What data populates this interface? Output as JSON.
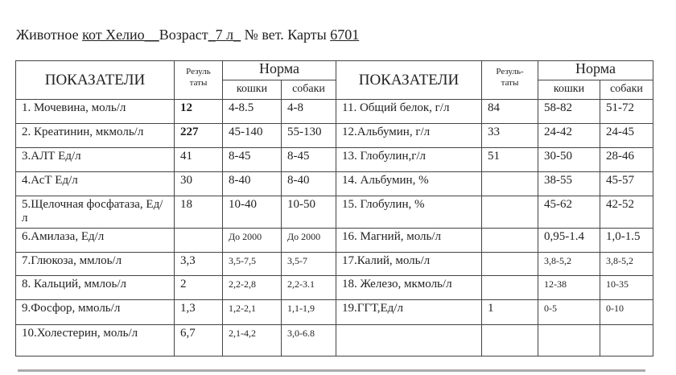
{
  "header": {
    "label_animal": "Животное ",
    "animal": "кот Хелио__",
    "label_age": "Возраст",
    "age": "_7 л_",
    "label_card": " № вет. Карты ",
    "card": "6701"
  },
  "columns": {
    "indicators": "ПОКАЗАТЕЛИ",
    "results_left": "Резуль таты",
    "results_right": "Резуль-таты",
    "norm": "Норма",
    "cats": "кошки",
    "dogs": "собаки"
  },
  "rows": [
    {
      "l": {
        "name": "1. Мочевина, моль/л",
        "res": "12",
        "cat": "4-8.5",
        "dog": "4-8"
      },
      "r": {
        "name": "11. Общий белок, г/л",
        "res": "84",
        "cat": "58-82",
        "dog": "51-72"
      }
    },
    {
      "l": {
        "name": "2. Креатинин, мкмоль/л",
        "res": "227",
        "cat": "45-140",
        "dog": "55-130"
      },
      "r": {
        "name": "12.Альбумин, г/л",
        "res": "33",
        "cat": "24-42",
        "dog": "24-45"
      }
    },
    {
      "l": {
        "name": "3.АЛТ Ед/л",
        "res": "41",
        "cat": "8-45",
        "dog": "8-45"
      },
      "r": {
        "name": "13. Глобулин,г/л",
        "res": "51",
        "cat": "30-50",
        "dog": "28-46"
      }
    },
    {
      "l": {
        "name": "4.АсТ Ед/л",
        "res": "30",
        "cat": "8-40",
        "dog": "8-40"
      },
      "r": {
        "name": "14. Альбумин, %",
        "res": "",
        "cat": "38-55",
        "dog": "45-57"
      }
    },
    {
      "l": {
        "name": "5.Щелочная фосфатаза, Ед/л",
        "res": "18",
        "cat": "10-40",
        "dog": "10-50"
      },
      "r": {
        "name": "15. Глобулин, %",
        "res": "",
        "cat": "45-62",
        "dog": "42-52"
      }
    },
    {
      "l": {
        "name": "6.Амилаза, Ед/л",
        "res": "",
        "cat": "До 2000",
        "dog": "До 2000"
      },
      "r": {
        "name": "16. Магний, моль/л",
        "res": "",
        "cat": "0,95-1.4",
        "dog": "1,0-1.5"
      }
    },
    {
      "l": {
        "name": "7.Глюкоза, ммлоь/л",
        "res": "3,3",
        "cat": "3,5-7,5",
        "dog": "3,5-7"
      },
      "r": {
        "name": "17.Калий, моль/л",
        "res": "",
        "cat": "3,8-5,2",
        "dog": "3,8-5,2"
      }
    },
    {
      "l": {
        "name": "8. Кальций, ммлоь/л",
        "res": "2",
        "cat": "2,2-2,8",
        "dog": "2,2-3.1"
      },
      "r": {
        "name": "18. Железо, мкмоль/л",
        "res": "",
        "cat": "12-38",
        "dog": "10-35"
      }
    },
    {
      "l": {
        "name": "9.Фосфор, ммоль/л",
        "res": "1,3",
        "cat": "1,2-2,1",
        "dog": "1,1-1,9"
      },
      "r": {
        "name": "19.ГГТ,Ед/л",
        "res": "1",
        "cat": "0-5",
        "dog": "0-10"
      }
    },
    {
      "l": {
        "name": "10.Холестерин, моль/л",
        "res": "6,7",
        "cat": "2,1-4,2",
        "dog": "3,0-6.8"
      },
      "r": {
        "name": "",
        "res": "",
        "cat": "",
        "dog": ""
      }
    }
  ]
}
